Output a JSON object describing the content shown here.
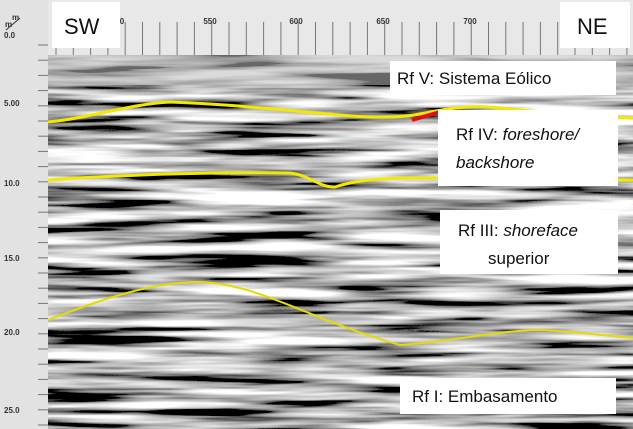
{
  "corners": {
    "left": "SW",
    "right": "NE"
  },
  "depth_unit": {
    "top": "m",
    "bottom": "m"
  },
  "top_axis": {
    "ticks": [
      "0",
      "550",
      "600",
      "650",
      "700"
    ]
  },
  "left_axis": {
    "ticks": [
      "0.0",
      "5.00",
      "10.0",
      "15.0",
      "20.0",
      "25.0"
    ]
  },
  "annotations": [
    {
      "label": "Rf V: Sistema Eólico"
    },
    {
      "label_parts": [
        "Rf IV: ",
        "foreshore/",
        "backshore"
      ]
    },
    {
      "label_parts": [
        "Rf III: ",
        "shoreface",
        "superior"
      ]
    },
    {
      "label": "Rf I: Embasamento"
    }
  ]
}
